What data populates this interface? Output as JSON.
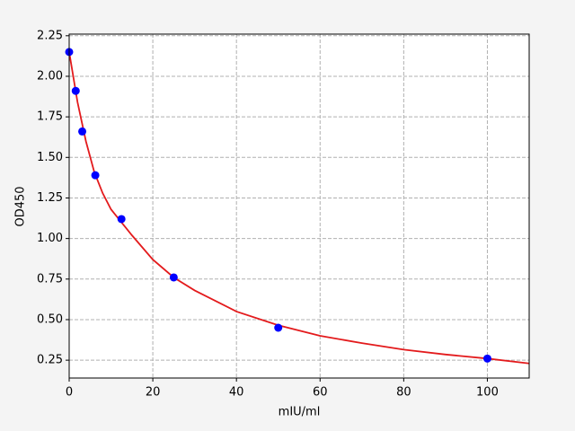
{
  "chart_data": {
    "type": "scatter",
    "x_label": "mIU/ml",
    "y_label": "OD450",
    "xlim": [
      0,
      110
    ],
    "ylim": [
      0.14,
      2.26
    ],
    "xticks": [
      0,
      20,
      40,
      60,
      80,
      100
    ],
    "yticks": [
      0.25,
      {
        "value": 0.5,
        "label": "0.50"
      },
      0.75,
      {
        "value": 1,
        "label": "1.00"
      },
      1.25,
      {
        "value": 1.5,
        "label": "1.50"
      },
      1.75,
      {
        "value": 2,
        "label": "2.00"
      },
      2.25
    ],
    "grid": true,
    "series": [
      {
        "color": "#0000ff",
        "marker": "o",
        "x": [
          0,
          1.5625,
          3.125,
          6.25,
          12.5,
          25,
          50,
          100
        ],
        "values": [
          2.15,
          1.91,
          1.66,
          1.39,
          1.12,
          0.76,
          0.45,
          0.26
        ]
      },
      {
        "color": "#e31a1c",
        "linestyle": "-",
        "x": [
          0,
          2,
          4,
          6,
          8,
          10,
          15,
          20,
          25,
          30,
          40,
          50,
          60,
          70,
          80,
          90,
          100,
          110
        ],
        "values": [
          2.15,
          1.84,
          1.6,
          1.41,
          1.28,
          1.18,
          1.02,
          0.87,
          0.76,
          0.68,
          0.55,
          0.465,
          0.4,
          0.355,
          0.315,
          0.285,
          0.26,
          0.23
        ]
      }
    ]
  }
}
